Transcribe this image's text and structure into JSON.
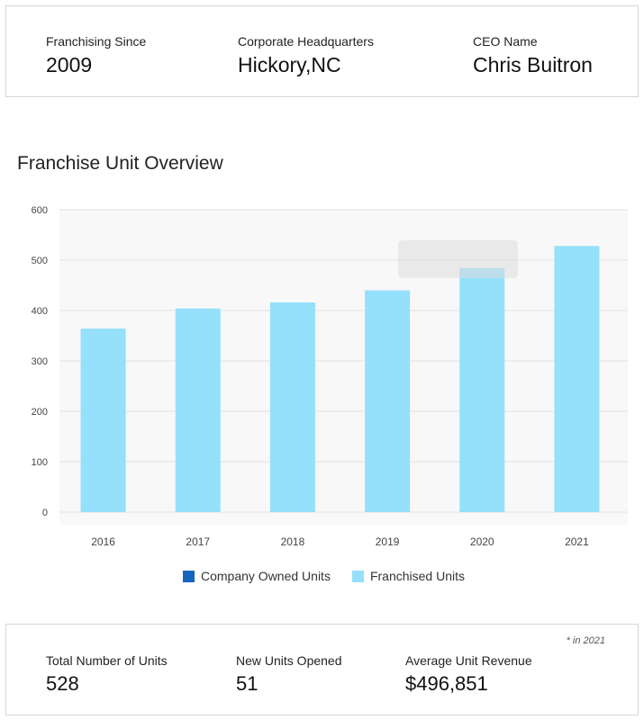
{
  "header_stats": [
    {
      "label": "Franchising Since",
      "value": "2009"
    },
    {
      "label": "Corporate Headquarters",
      "value": "Hickory,NC"
    },
    {
      "label": "CEO Name",
      "value": "Chris Buitron"
    }
  ],
  "chart_title": "Franchise Unit Overview",
  "chart_data": {
    "type": "bar",
    "categories": [
      "2016",
      "2017",
      "2018",
      "2019",
      "2020",
      "2021"
    ],
    "series": [
      {
        "name": "Company Owned Units",
        "values": [
          0,
          0,
          0,
          0,
          0,
          0
        ],
        "color": "#1565c0"
      },
      {
        "name": "Franchised Units",
        "values": [
          364,
          404,
          416,
          440,
          484,
          528
        ],
        "color": "#95e0fb"
      }
    ],
    "ylim": [
      0,
      600
    ],
    "yticks": [
      0,
      100,
      200,
      300,
      400,
      500,
      600
    ],
    "grid": true,
    "legend": "bottom",
    "xlabel": "",
    "ylabel": ""
  },
  "footer_note": "* in 2021",
  "footer_stats": [
    {
      "label": "Total Number of Units",
      "value": "528"
    },
    {
      "label": "New Units Opened",
      "value": "51"
    },
    {
      "label": "Average Unit Revenue",
      "value": "$496,851"
    }
  ]
}
